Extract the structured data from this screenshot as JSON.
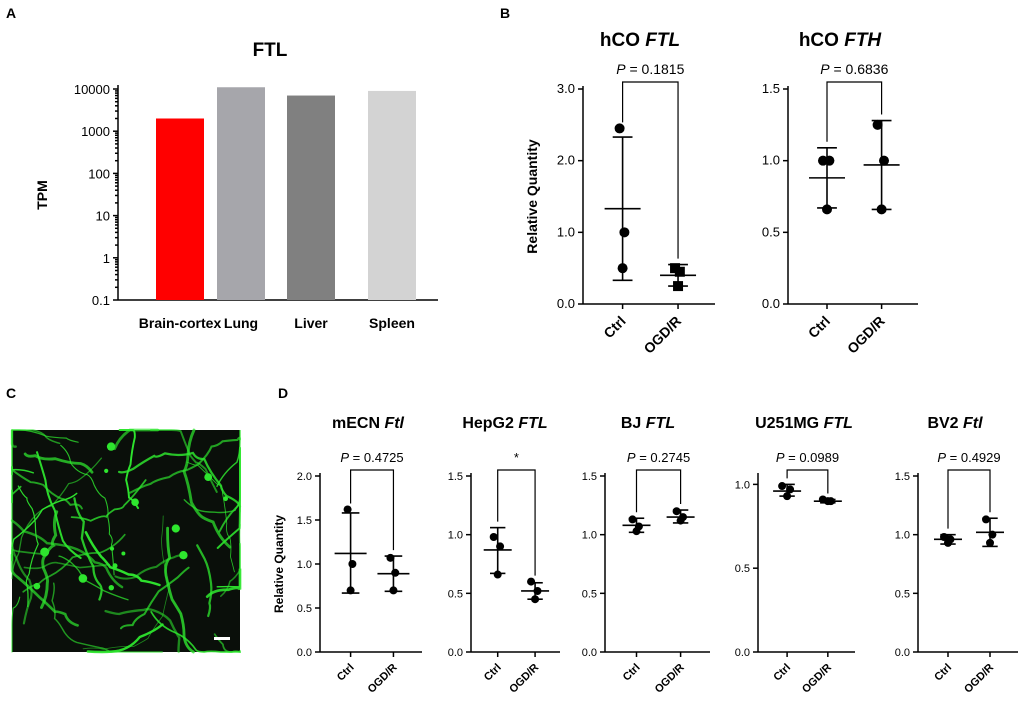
{
  "panels": {
    "a": "A",
    "b": "B",
    "c": "C",
    "d": "D"
  },
  "chart_data": [
    {
      "id": "A",
      "type": "bar",
      "title": "FTL",
      "ylabel": "TPM",
      "yscale": "log",
      "ylim": [
        0.1,
        10000
      ],
      "yticks": [
        "0.1",
        "1",
        "10",
        "100",
        "1000",
        "10000"
      ],
      "categories": [
        "Brain-cortex",
        "Lung",
        "Liver",
        "Spleen"
      ],
      "values": [
        2000,
        11000,
        7000,
        9000
      ],
      "colors": [
        "#ff0000",
        "#a6a6ab",
        "#808080",
        "#d3d3d3"
      ]
    },
    {
      "id": "B1",
      "type": "scatter",
      "title_plain": "hCO",
      "title_italic": "FTL",
      "ylabel": "Relative Quantity",
      "ylim": [
        0,
        3.0
      ],
      "yticks": [
        "0.0",
        "1.0",
        "2.0",
        "3.0"
      ],
      "categories": [
        "Ctrl",
        "OGD/R"
      ],
      "series": [
        {
          "points": [
            2.45,
            1.0,
            0.5
          ],
          "mean": 1.33,
          "sd_low": 0.33,
          "sd_high": 2.33,
          "marker": "circle"
        },
        {
          "points": [
            0.5,
            0.45,
            0.25
          ],
          "mean": 0.4,
          "sd_low": 0.25,
          "sd_high": 0.55,
          "marker": "square"
        }
      ],
      "p_label": "P",
      "p_text": " = 0.1815"
    },
    {
      "id": "B2",
      "type": "scatter",
      "title_plain": "hCO",
      "title_italic": "FTH",
      "ylabel": "",
      "ylim": [
        0,
        1.5
      ],
      "yticks": [
        "0.0",
        "0.5",
        "1.0",
        "1.5"
      ],
      "categories": [
        "Ctrl",
        "OGD/R"
      ],
      "series": [
        {
          "points": [
            1.0,
            1.0,
            0.66
          ],
          "mean": 0.88,
          "sd_low": 0.67,
          "sd_high": 1.09,
          "marker": "circle"
        },
        {
          "points": [
            1.25,
            1.0,
            0.66
          ],
          "mean": 0.97,
          "sd_low": 0.66,
          "sd_high": 1.28,
          "marker": "circle"
        }
      ],
      "p_label": "P",
      "p_text": " = 0.6836"
    },
    {
      "id": "D1",
      "type": "scatter",
      "title_plain": "mECN",
      "title_italic": "Ftl",
      "ylabel": "Relative Quantity",
      "ylim": [
        0,
        2.0
      ],
      "yticks": [
        "0.0",
        "0.5",
        "1.0",
        "1.5",
        "2.0"
      ],
      "categories": [
        "Ctrl",
        "OGD/R"
      ],
      "series": [
        {
          "points": [
            1.62,
            1.0,
            0.7
          ],
          "mean": 1.12,
          "sd_low": 0.67,
          "sd_high": 1.58,
          "marker": "circle"
        },
        {
          "points": [
            1.07,
            0.9,
            0.7
          ],
          "mean": 0.89,
          "sd_low": 0.69,
          "sd_high": 1.09,
          "marker": "circle"
        }
      ],
      "p_label": "P",
      "p_text": " = 0.4725"
    },
    {
      "id": "D2",
      "type": "scatter",
      "title_plain": "HepG2",
      "title_italic": "FTL",
      "ylabel": "",
      "ylim": [
        0,
        1.5
      ],
      "yticks": [
        "0.0",
        "0.5",
        "1.0",
        "1.5"
      ],
      "categories": [
        "Ctrl",
        "OGD/R"
      ],
      "series": [
        {
          "points": [
            0.98,
            0.9,
            0.66
          ],
          "mean": 0.87,
          "sd_low": 0.67,
          "sd_high": 1.06,
          "marker": "circle"
        },
        {
          "points": [
            0.6,
            0.52,
            0.45
          ],
          "mean": 0.52,
          "sd_low": 0.45,
          "sd_high": 0.59,
          "marker": "circle"
        }
      ],
      "p_label": "",
      "p_text": "*"
    },
    {
      "id": "D3",
      "type": "scatter",
      "title_plain": "BJ",
      "title_italic": "FTL",
      "ylabel": "",
      "ylim": [
        0,
        1.5
      ],
      "yticks": [
        "0.0",
        "0.5",
        "1.0",
        "1.5"
      ],
      "categories": [
        "Ctrl",
        "OGD/R"
      ],
      "series": [
        {
          "points": [
            1.13,
            1.07,
            1.03
          ],
          "mean": 1.08,
          "sd_low": 1.02,
          "sd_high": 1.14,
          "marker": "circle"
        },
        {
          "points": [
            1.2,
            1.15,
            1.12
          ],
          "mean": 1.15,
          "sd_low": 1.1,
          "sd_high": 1.21,
          "marker": "circle"
        }
      ],
      "p_label": "P",
      "p_text": " = 0.2745"
    },
    {
      "id": "D4",
      "type": "scatter",
      "title_plain": "U251MG",
      "title_italic": "FTL",
      "ylabel": "",
      "ylim": [
        0,
        1.05
      ],
      "yticks": [
        "0.0",
        "0.5",
        "1.0"
      ],
      "categories": [
        "Ctrl",
        "OGD/R"
      ],
      "series": [
        {
          "points": [
            0.99,
            0.97,
            0.93
          ],
          "mean": 0.96,
          "sd_low": 0.93,
          "sd_high": 1.0,
          "marker": "circle"
        },
        {
          "points": [
            0.91,
            0.9,
            0.9
          ],
          "mean": 0.9,
          "sd_low": 0.89,
          "sd_high": 0.91,
          "marker": "circle"
        }
      ],
      "p_label": "P",
      "p_text": " = 0.0989"
    },
    {
      "id": "D5",
      "type": "scatter",
      "title_plain": "BV2",
      "title_italic": "Ftl",
      "ylabel": "",
      "ylim": [
        0,
        1.5
      ],
      "yticks": [
        "0.0",
        "0.5",
        "1.0",
        "1.5"
      ],
      "categories": [
        "Ctrl",
        "OGD/R"
      ],
      "series": [
        {
          "points": [
            0.98,
            0.96,
            0.93
          ],
          "mean": 0.96,
          "sd_low": 0.92,
          "sd_high": 1.0,
          "marker": "circle"
        },
        {
          "points": [
            1.13,
            1.0,
            0.93
          ],
          "mean": 1.02,
          "sd_low": 0.9,
          "sd_high": 1.14,
          "marker": "circle"
        }
      ],
      "p_label": "P",
      "p_text": " = 0.4929"
    }
  ],
  "microscopy": {
    "description_color": "#2ee62e",
    "background": "#0a0f0a"
  }
}
